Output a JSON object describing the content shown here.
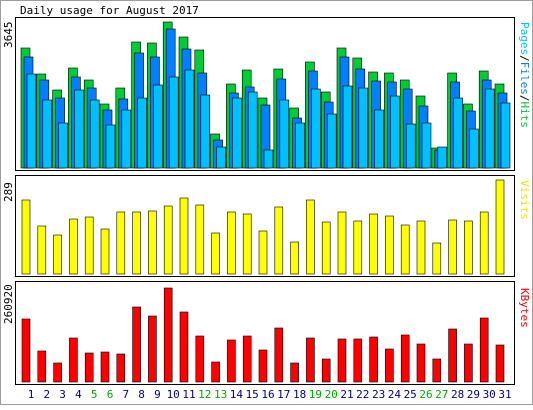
{
  "title": "Daily usage for August 2017",
  "colors": {
    "hits": "#00cc33",
    "files": "#0080ff",
    "pages": "#00c0ff",
    "visits": "#ffff00",
    "kbytes": "#ff0000",
    "weekend_label": "#00aa00",
    "weekday_label": "#000080"
  },
  "chart_data": [
    {
      "type": "bar",
      "panel": "hits-files-pages",
      "legend_label": "Pages/Files/Hits",
      "legend_parts": [
        "Pages",
        "Files",
        "Hits"
      ],
      "max_label": "3645",
      "ylim": [
        0,
        3645
      ],
      "categories": [
        "1",
        "2",
        "3",
        "4",
        "5",
        "6",
        "7",
        "8",
        "9",
        "10",
        "11",
        "12",
        "13",
        "14",
        "15",
        "16",
        "17",
        "18",
        "19",
        "20",
        "21",
        "22",
        "23",
        "24",
        "25",
        "26",
        "27",
        "28",
        "29",
        "30",
        "31"
      ],
      "series": [
        {
          "name": "Hits",
          "color_key": "hits",
          "values": [
            3000,
            2350,
            1950,
            2500,
            2200,
            1600,
            2000,
            3140,
            3120,
            3645,
            3270,
            2950,
            850,
            2100,
            2450,
            1750,
            2480,
            1500,
            2650,
            1900,
            3000,
            2740,
            2400,
            2380,
            2200,
            1800,
            500,
            2360,
            1600,
            2420,
            2100
          ]
        },
        {
          "name": "Files",
          "color_key": "files",
          "values": [
            2760,
            2200,
            1740,
            2260,
            1990,
            1450,
            1730,
            2860,
            2770,
            3460,
            2960,
            2370,
            700,
            1880,
            2020,
            1570,
            2230,
            1260,
            2420,
            1640,
            2760,
            2470,
            2170,
            2140,
            1960,
            1560,
            460,
            2150,
            1430,
            2200,
            1870
          ]
        },
        {
          "name": "Pages",
          "color_key": "pages",
          "values": [
            2340,
            1700,
            1130,
            1950,
            1690,
            1070,
            1450,
            1760,
            2080,
            2280,
            2450,
            1820,
            520,
            1750,
            1890,
            440,
            1700,
            1120,
            1970,
            1360,
            2040,
            1990,
            1450,
            1800,
            1110,
            1120,
            520,
            1750,
            980,
            1970,
            1630
          ]
        }
      ]
    },
    {
      "type": "bar",
      "panel": "visits",
      "legend_label": "Visits",
      "max_label": "289",
      "ylim": [
        0,
        289
      ],
      "categories": [
        "1",
        "2",
        "3",
        "4",
        "5",
        "6",
        "7",
        "8",
        "9",
        "10",
        "11",
        "12",
        "13",
        "14",
        "15",
        "16",
        "17",
        "18",
        "19",
        "20",
        "21",
        "22",
        "23",
        "24",
        "25",
        "26",
        "27",
        "28",
        "29",
        "30",
        "31"
      ],
      "series": [
        {
          "name": "Visits",
          "color_key": "visits",
          "values": [
            226,
            149,
            121,
            170,
            174,
            138,
            190,
            191,
            195,
            210,
            235,
            212,
            127,
            191,
            184,
            131,
            205,
            98,
            226,
            160,
            190,
            163,
            186,
            179,
            152,
            164,
            96,
            167,
            162,
            191,
            289
          ]
        }
      ]
    },
    {
      "type": "bar",
      "panel": "kbytes",
      "legend_label": "KBytes",
      "max_label": "260920",
      "ylim": [
        0,
        260920
      ],
      "categories": [
        "1",
        "2",
        "3",
        "4",
        "5",
        "6",
        "7",
        "8",
        "9",
        "10",
        "11",
        "12",
        "13",
        "14",
        "15",
        "16",
        "17",
        "18",
        "19",
        "20",
        "21",
        "22",
        "23",
        "24",
        "25",
        "26",
        "27",
        "28",
        "29",
        "30",
        "31"
      ],
      "series": [
        {
          "name": "KBytes",
          "color_key": "kbytes",
          "values": [
            174000,
            87000,
            52000,
            122000,
            80000,
            82000,
            78000,
            208000,
            182000,
            260920,
            193000,
            127000,
            55000,
            116000,
            127000,
            88000,
            150000,
            52000,
            123000,
            64000,
            120000,
            120000,
            124000,
            92000,
            131000,
            106000,
            64000,
            147000,
            106000,
            177000,
            103000
          ]
        }
      ]
    }
  ],
  "x_labels": [
    {
      "text": "1",
      "weekend": false
    },
    {
      "text": "2",
      "weekend": false
    },
    {
      "text": "3",
      "weekend": false
    },
    {
      "text": "4",
      "weekend": false
    },
    {
      "text": "5",
      "weekend": true
    },
    {
      "text": "6",
      "weekend": true
    },
    {
      "text": "7",
      "weekend": false
    },
    {
      "text": "8",
      "weekend": false
    },
    {
      "text": "9",
      "weekend": false
    },
    {
      "text": "10",
      "weekend": false
    },
    {
      "text": "11",
      "weekend": false
    },
    {
      "text": "12",
      "weekend": true
    },
    {
      "text": "13",
      "weekend": true
    },
    {
      "text": "14",
      "weekend": false
    },
    {
      "text": "15",
      "weekend": false
    },
    {
      "text": "16",
      "weekend": false
    },
    {
      "text": "17",
      "weekend": false
    },
    {
      "text": "18",
      "weekend": false
    },
    {
      "text": "19",
      "weekend": true
    },
    {
      "text": "20",
      "weekend": true
    },
    {
      "text": "21",
      "weekend": false
    },
    {
      "text": "22",
      "weekend": false
    },
    {
      "text": "23",
      "weekend": false
    },
    {
      "text": "24",
      "weekend": false
    },
    {
      "text": "25",
      "weekend": false
    },
    {
      "text": "26",
      "weekend": true
    },
    {
      "text": "27",
      "weekend": true
    },
    {
      "text": "28",
      "weekend": false
    },
    {
      "text": "29",
      "weekend": false
    },
    {
      "text": "30",
      "weekend": false
    },
    {
      "text": "31",
      "weekend": false
    }
  ]
}
